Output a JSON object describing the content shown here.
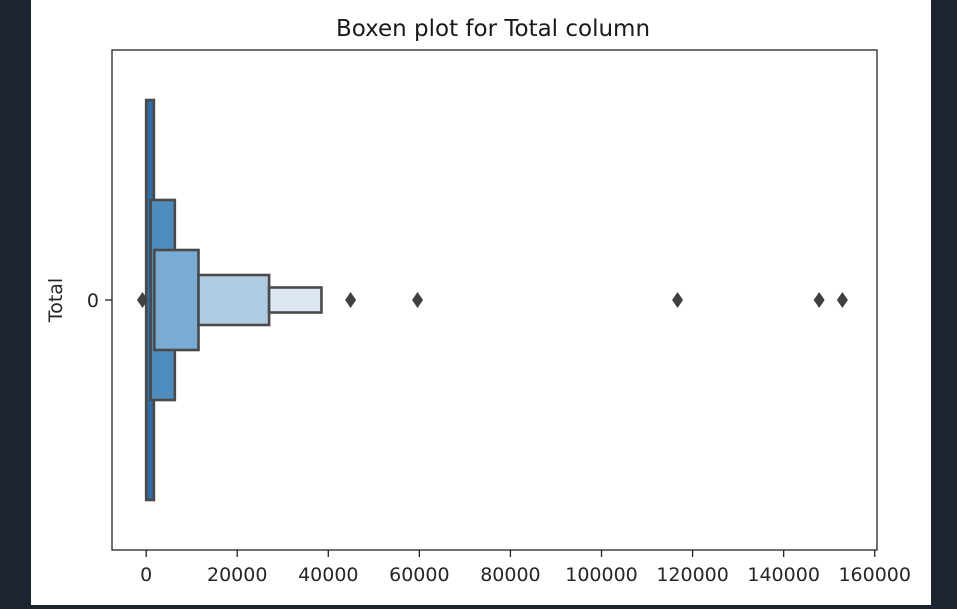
{
  "chart_data": {
    "type": "boxen",
    "title": "Boxen plot for Total column",
    "xlabel": "",
    "ylabel": "Total",
    "xlim": [
      -7500,
      160500
    ],
    "x_ticks": [
      0,
      20000,
      40000,
      60000,
      80000,
      100000,
      120000,
      140000,
      160000
    ],
    "x_tick_labels": [
      "0",
      "20000",
      "40000",
      "60000",
      "80000",
      "100000",
      "120000",
      "140000",
      "160000"
    ],
    "y_tick_labels": [
      "0"
    ],
    "grid": false,
    "legend": "none",
    "boxes": [
      {
        "level": 1,
        "lower": 0,
        "upper": 1700,
        "height_fraction": 0.8,
        "color": "#2f6da4"
      },
      {
        "level": 2,
        "lower": 1000,
        "upper": 6300,
        "height_fraction": 0.4,
        "color": "#4d8cbd"
      },
      {
        "level": 3,
        "lower": 1800,
        "upper": 11500,
        "height_fraction": 0.2,
        "color": "#7aabd2"
      },
      {
        "level": 4,
        "lower": 11500,
        "upper": 27000,
        "height_fraction": 0.1,
        "color": "#b0cce4"
      },
      {
        "level": 5,
        "lower": 27000,
        "upper": 38500,
        "height_fraction": 0.05,
        "color": "#dde8f2"
      }
    ],
    "outliers": [
      -800,
      44900,
      59600,
      116700,
      147800,
      152900
    ],
    "colors": {
      "edge": "#4a4a4a",
      "outlier": "#404040"
    }
  }
}
